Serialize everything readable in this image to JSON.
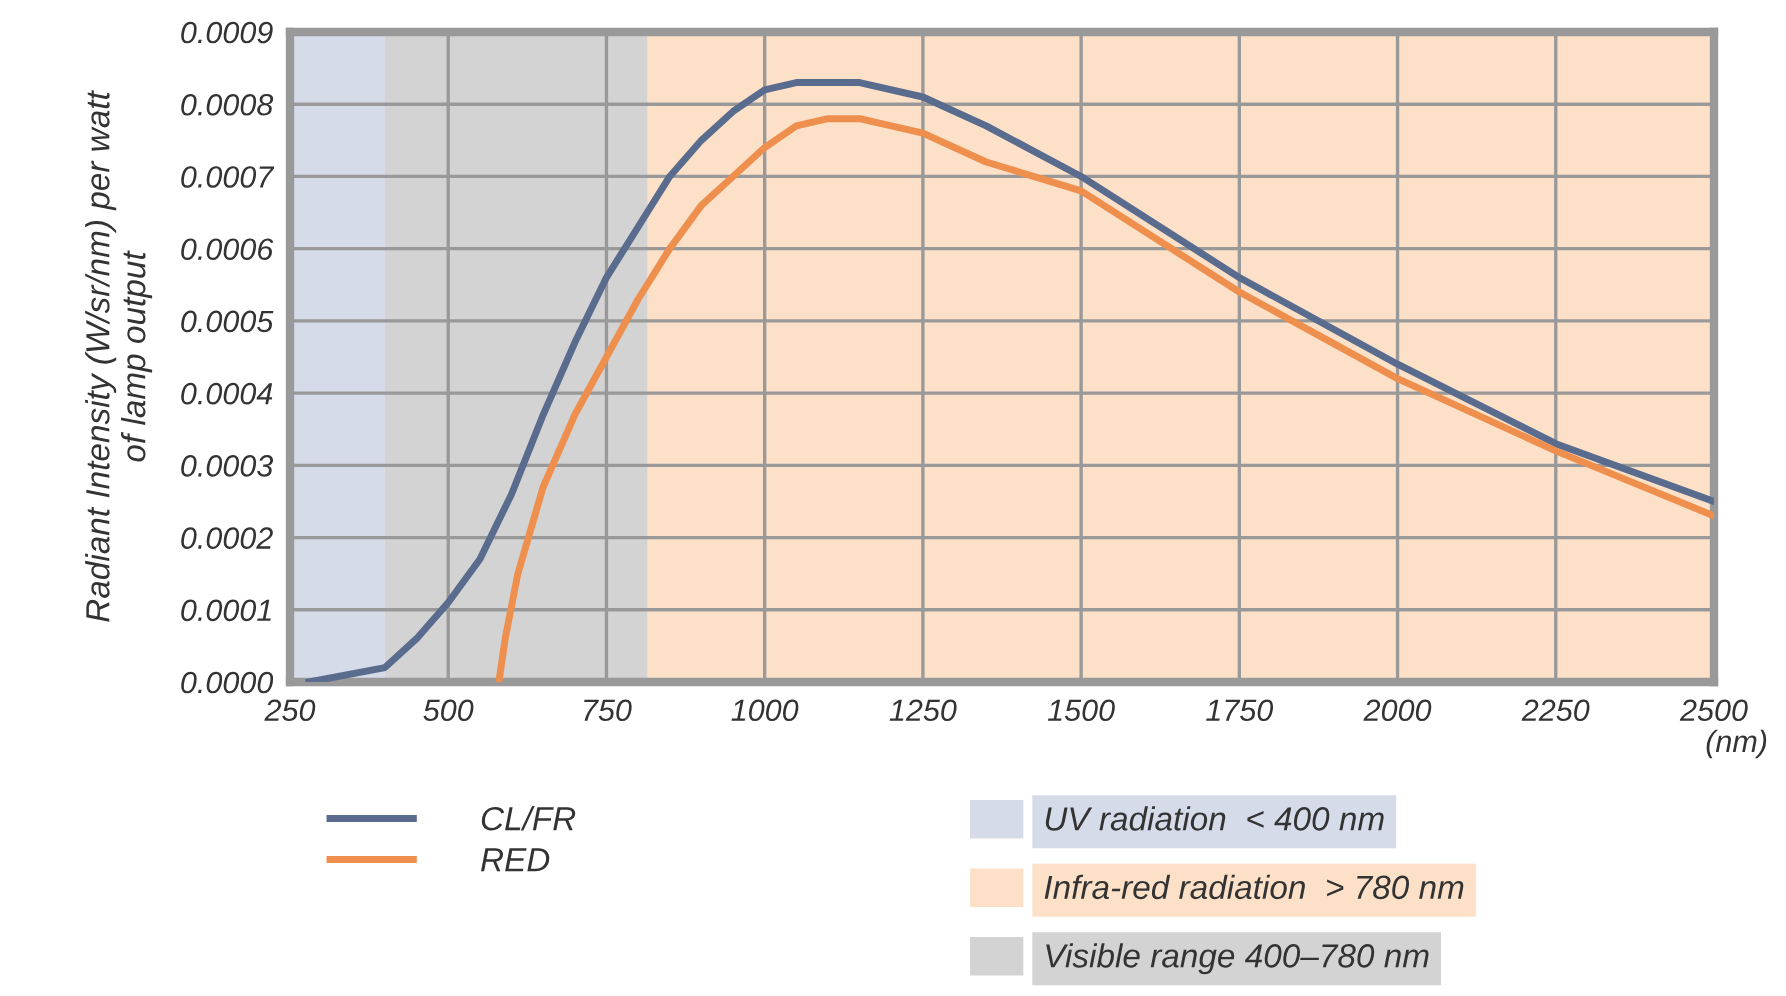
{
  "chart_data": {
    "type": "line",
    "ylabel": "Radiant Intensity (W/sr/nm) per watt\nof lamp output",
    "xlabel": "(nm)",
    "xlim": [
      250,
      2500
    ],
    "xticks": [
      250,
      500,
      750,
      1000,
      1250,
      1500,
      1750,
      2000,
      2250,
      2500
    ],
    "ylim": [
      0,
      0.0009
    ],
    "yticks": [
      {
        "value": 0,
        "label": "0.0000"
      },
      {
        "value": 0.0001,
        "label": "0.0001"
      },
      {
        "value": 0.0002,
        "label": "0.0002"
      },
      {
        "value": 0.0003,
        "label": "0.0003"
      },
      {
        "value": 0.0004,
        "label": "0.0004"
      },
      {
        "value": 0.0005,
        "label": "0.0005"
      },
      {
        "value": 0.0006,
        "label": "0.0006"
      },
      {
        "value": 0.0007,
        "label": "0.0007"
      },
      {
        "value": 0.0008,
        "label": "0.0008"
      },
      {
        "value": 0.0009,
        "label": "0.0009"
      }
    ],
    "grid": true,
    "legend": "bottom left",
    "marker": "none",
    "line_style": "solid",
    "bands": [
      {
        "axis": "x",
        "from": 250,
        "to": 400,
        "label": "UV radiation  < 400 nm",
        "color": "#d5dbe8"
      },
      {
        "axis": "x",
        "from": 815,
        "to": 2500,
        "label": "Infra-red radiation  > 780 nm",
        "color": "#fce0c8"
      },
      {
        "axis": "x",
        "from": 400,
        "to": 815,
        "label": "Visible range 400–780 nm",
        "color": "#d3d3d3"
      }
    ],
    "series": [
      {
        "name": "CL/FR",
        "color": "#5a6c8e",
        "x": [
          280,
          400,
          450,
          500,
          550,
          600,
          650,
          700,
          750,
          800,
          850,
          900,
          950,
          1000,
          1050,
          1100,
          1150,
          1250,
          1350,
          1500,
          1750,
          2000,
          2250,
          2500
        ],
        "values": [
          0,
          2e-05,
          6e-05,
          0.00011,
          0.00017,
          0.00026,
          0.00037,
          0.00047,
          0.00056,
          0.00063,
          0.0007,
          0.00075,
          0.00079,
          0.00082,
          0.00083,
          0.00083,
          0.00083,
          0.00081,
          0.00077,
          0.0007,
          0.00056,
          0.00044,
          0.00033,
          0.00025
        ]
      },
      {
        "name": "RED",
        "color": "#ee8f4e",
        "x": [
          580,
          590,
          610,
          650,
          700,
          750,
          800,
          850,
          900,
          950,
          1000,
          1050,
          1100,
          1150,
          1250,
          1350,
          1500,
          1750,
          2000,
          2250,
          2500
        ],
        "values": [
          0,
          6e-05,
          0.00015,
          0.00027,
          0.00037,
          0.00045,
          0.00053,
          0.0006,
          0.00066,
          0.0007,
          0.00074,
          0.00077,
          0.00078,
          0.00078,
          0.00076,
          0.00072,
          0.00068,
          0.00054,
          0.00042,
          0.00032,
          0.00023
        ]
      }
    ]
  }
}
